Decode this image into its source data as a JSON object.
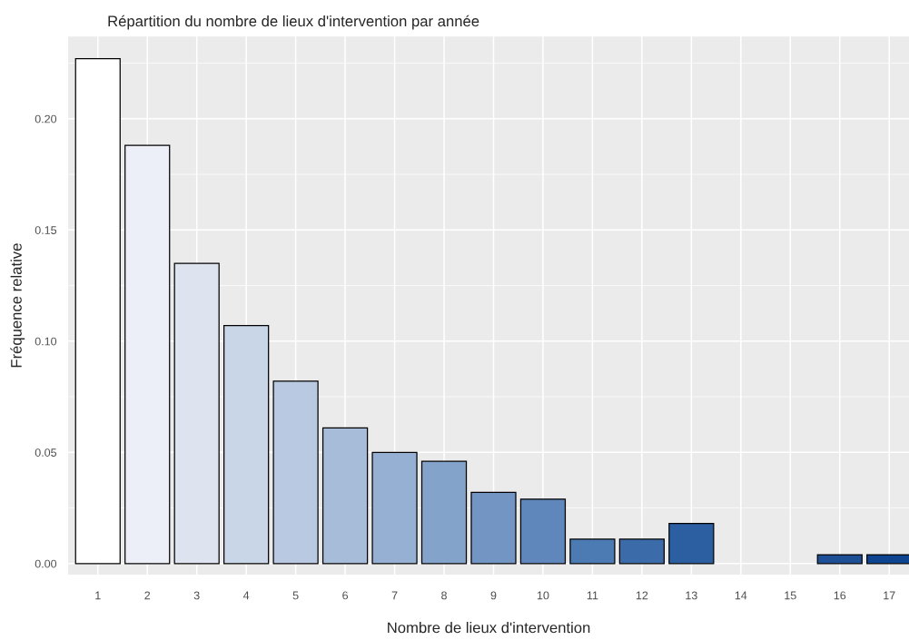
{
  "chart_data": {
    "type": "bar",
    "title": "Répartition du nombre de lieux d'intervention par année",
    "xlabel": "Nombre de lieux d'intervention",
    "ylabel": "Fréquence relative",
    "categories": [
      "1",
      "2",
      "3",
      "4",
      "5",
      "6",
      "7",
      "8",
      "9",
      "10",
      "11",
      "12",
      "13",
      "14",
      "15",
      "16",
      "17"
    ],
    "values": [
      0.227,
      0.188,
      0.135,
      0.107,
      0.082,
      0.061,
      0.05,
      0.046,
      0.032,
      0.029,
      0.011,
      0.011,
      0.018,
      null,
      null,
      0.004,
      0.004
    ],
    "colors": [
      "#ffffff",
      "#eceff7",
      "#dde3ef",
      "#c9d6e8",
      "#b8c9e1",
      "#a7bcd9",
      "#95b0d2",
      "#84a3ca",
      "#7395c3",
      "#5f87bb",
      "#4c7ab2",
      "#3b6ca9",
      "#2c5ea2",
      null,
      null,
      "#1d4f97",
      "#0e448f"
    ],
    "ylim": [
      -0.005,
      0.237
    ],
    "yticks": [
      {
        "value": 0,
        "label": "0.00"
      },
      {
        "value": 0.05,
        "label": "0.05"
      },
      {
        "value": 0.1,
        "label": "0.10"
      },
      {
        "value": 0.15,
        "label": "0.15"
      },
      {
        "value": 0.2,
        "label": "0.20"
      }
    ],
    "grid": true,
    "legend": false
  }
}
